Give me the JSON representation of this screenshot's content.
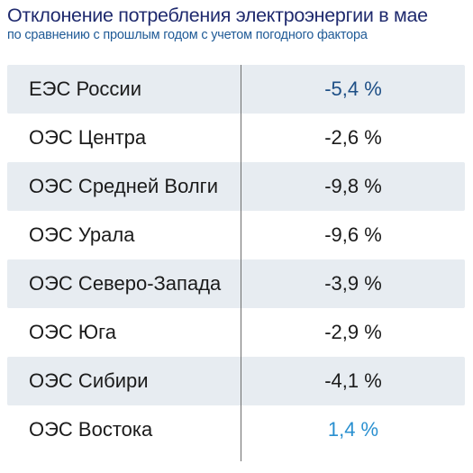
{
  "title": "Отклонение потребления электроэнергии в мае",
  "subtitle": "по сравнению с прошлым годом с учетом погодного фактора",
  "colors": {
    "title": "#1f2a6e",
    "subtitle": "#1f5a96",
    "row_stripe": "#e7ecf1",
    "negative_value": "#1b1b1b",
    "positive_value": "#2a90d0"
  },
  "chart_data": {
    "type": "table",
    "title": "Отклонение потребления электроэнергии в мае",
    "subtitle": "по сравнению с прошлым годом с учетом погодного фактора",
    "rows": [
      {
        "name": "ЕЭС России",
        "value": -5.4,
        "label": "-5,4 %"
      },
      {
        "name": "ОЭС Центра",
        "value": -2.6,
        "label": "-2,6 %"
      },
      {
        "name": "ОЭС Средней Волги",
        "value": -9.8,
        "label": "-9,8 %"
      },
      {
        "name": "ОЭС Урала",
        "value": -9.6,
        "label": "-9,6 %"
      },
      {
        "name": "ОЭС Северо-Запада",
        "value": -3.9,
        "label": "-3,9 %"
      },
      {
        "name": "ОЭС Юга",
        "value": -2.9,
        "label": "-2,9 %"
      },
      {
        "name": "ОЭС Сибири",
        "value": -4.1,
        "label": "-4,1 %"
      },
      {
        "name": "ОЭС Востока",
        "value": 1.4,
        "label": "1,4 %"
      }
    ]
  }
}
